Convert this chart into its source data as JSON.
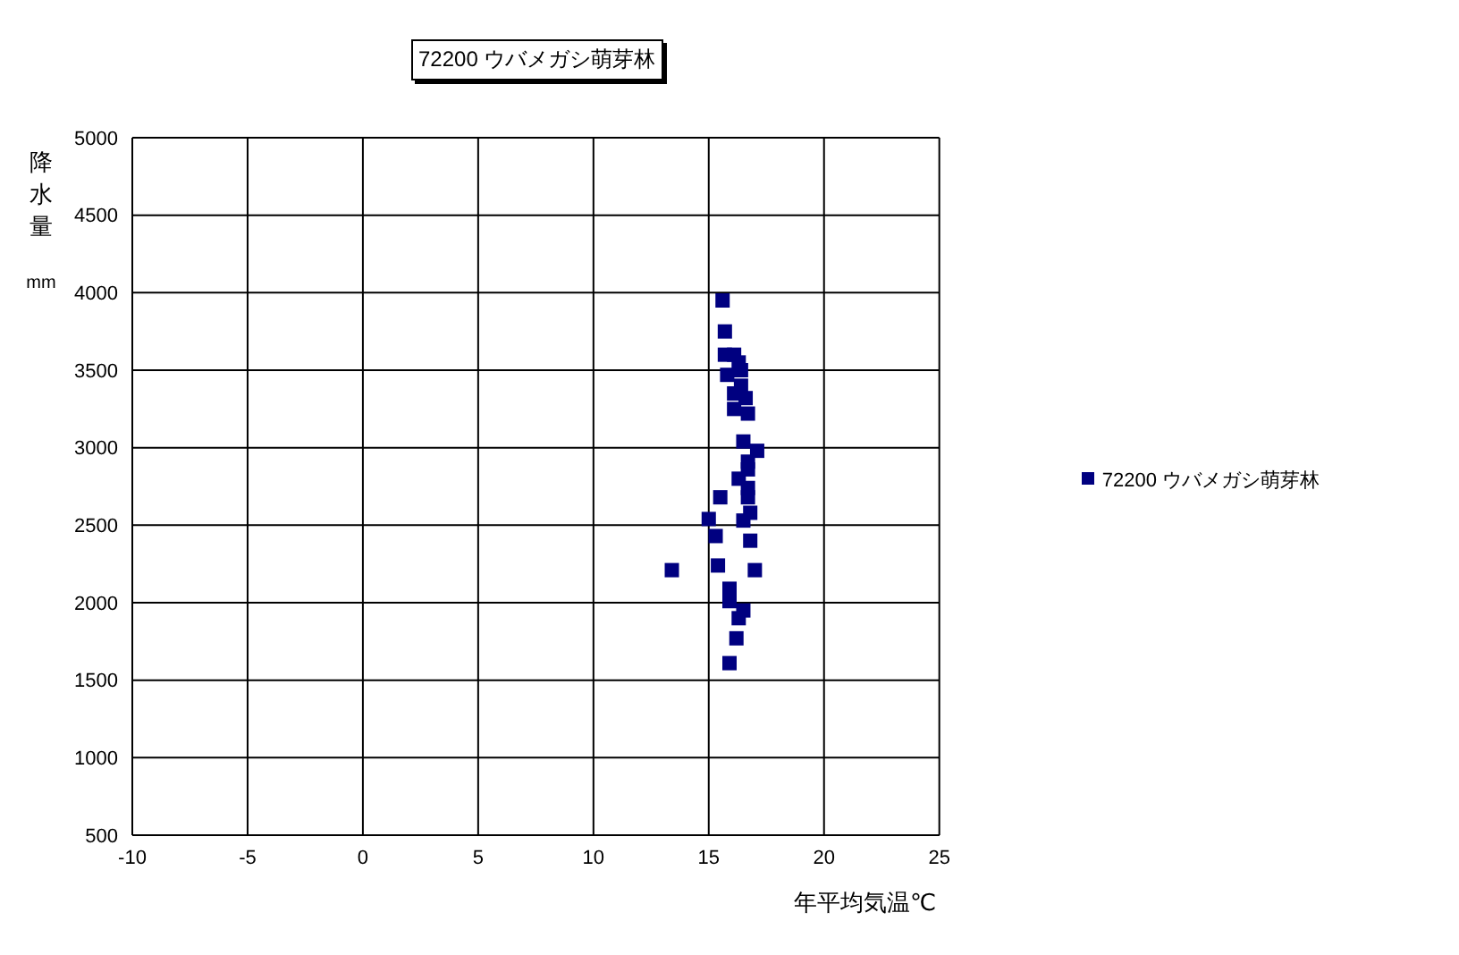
{
  "chart_data": {
    "type": "scatter",
    "title": "72200 ウバメガシ萌芽林",
    "xlabel": "年平均気温℃",
    "ylabel": "降水量 mm",
    "xlim": [
      -10,
      25
    ],
    "xticks": [
      -10,
      -5,
      0,
      5,
      10,
      15,
      20,
      25
    ],
    "ylim": [
      500,
      5000
    ],
    "yticks": [
      500,
      1000,
      1500,
      2000,
      2500,
      3000,
      3500,
      4000,
      4500,
      5000
    ],
    "grid": true,
    "legend": "right",
    "marker": "square",
    "series": [
      {
        "name": "72200 ウバメガシ萌芽林",
        "color": "#000080",
        "x": [
          15.6,
          15.7,
          15.7,
          16.1,
          15.8,
          16.3,
          16.4,
          16.4,
          16.1,
          16.6,
          16.1,
          16.7,
          16.5,
          17.1,
          16.7,
          16.7,
          16.3,
          16.7,
          16.7,
          15.5,
          16.8,
          16.5,
          15.0,
          15.3,
          16.8,
          15.4,
          17.0,
          13.4,
          15.9,
          15.9,
          16.5,
          16.3,
          16.2,
          15.9
        ],
        "values": [
          3950,
          3750,
          3600,
          3600,
          3470,
          3550,
          3500,
          3400,
          3350,
          3320,
          3250,
          3220,
          3040,
          2980,
          2910,
          2860,
          2800,
          2740,
          2680,
          2680,
          2580,
          2530,
          2540,
          2430,
          2400,
          2240,
          2210,
          2210,
          2090,
          2010,
          1950,
          1900,
          1770,
          1610
        ]
      }
    ]
  }
}
